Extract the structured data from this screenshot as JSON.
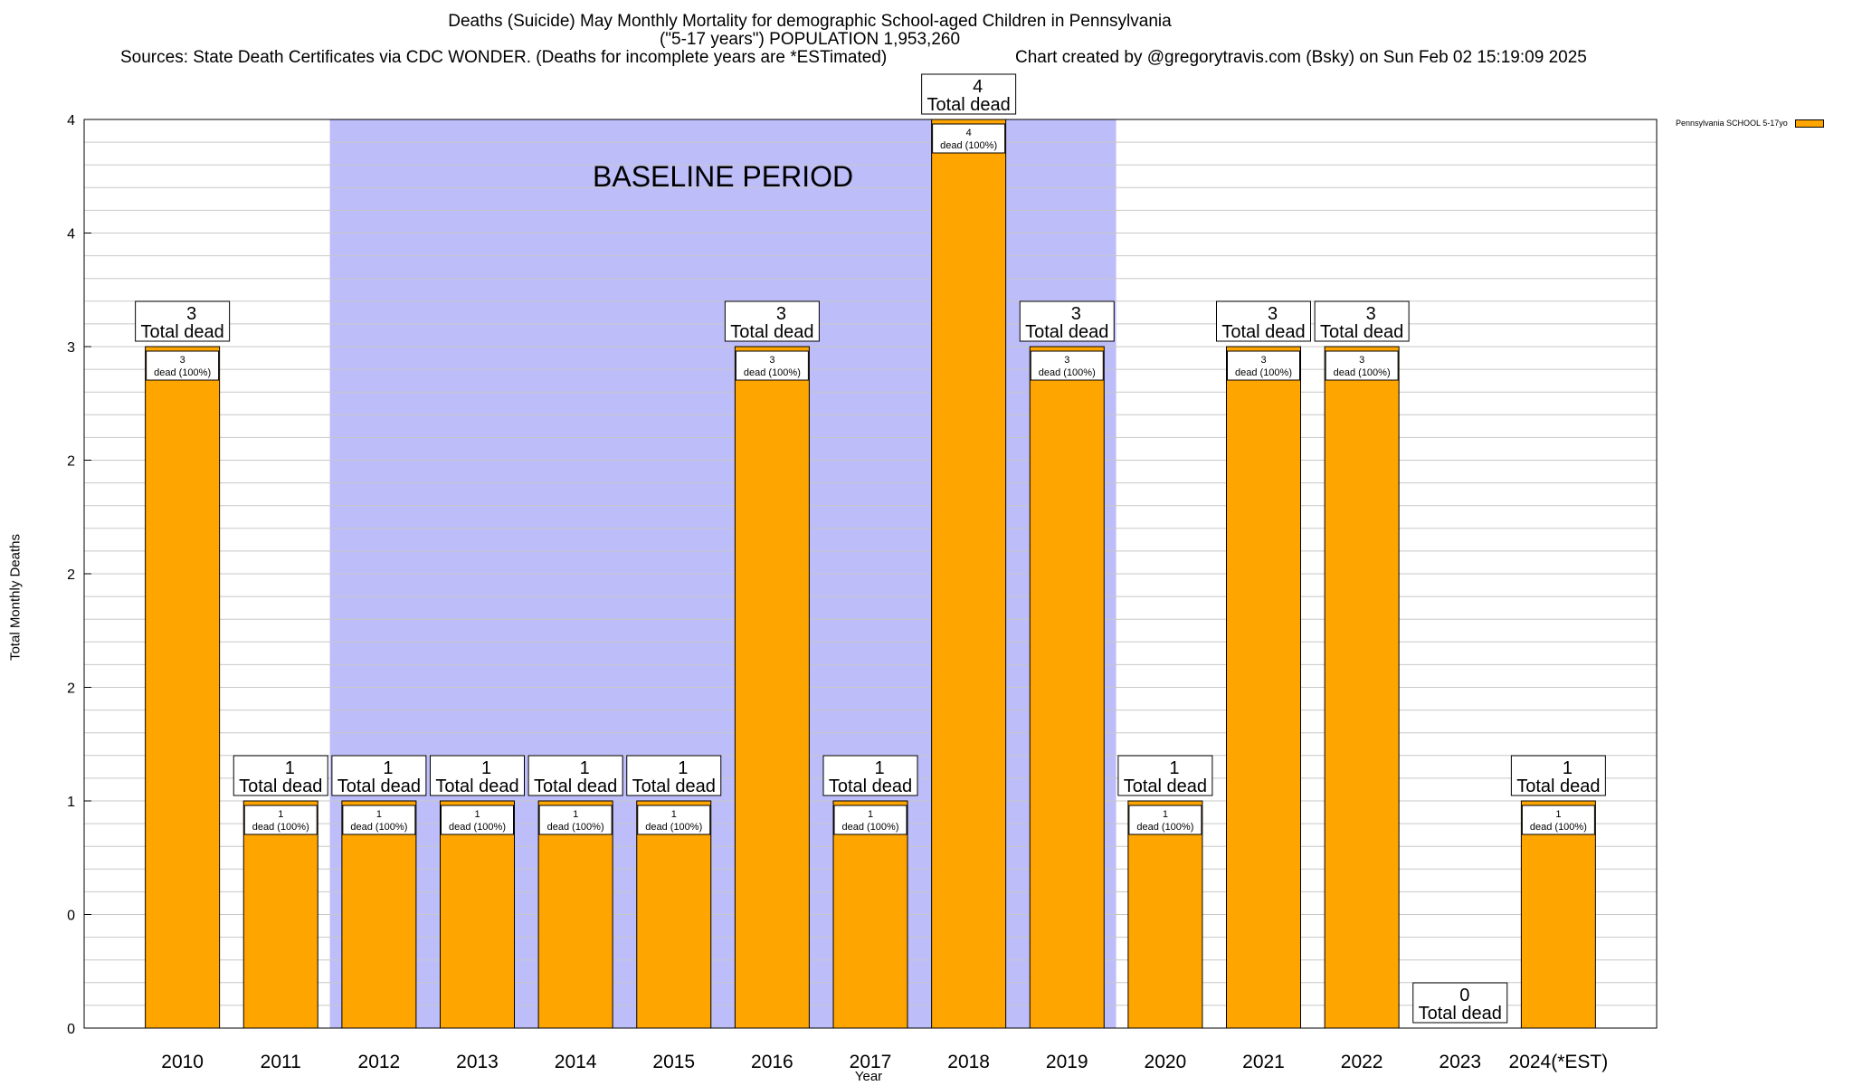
{
  "chart_data": {
    "type": "bar",
    "title_line1": "Deaths (Suicide) May Monthly Mortality for demographic School-aged Children in Pennsylvania",
    "title_line2": "(\"5-17 years\") POPULATION 1,953,260",
    "sources": "Sources: State Death Certificates via CDC WONDER. (Deaths for incomplete years are *ESTimated)",
    "credit": "Chart created by @gregorytravis.com (Bsky) on Sun Feb 02 15:19:09 2025",
    "xlabel": "Year",
    "ylabel": "Total Monthly Deaths",
    "ylim": [
      0,
      4
    ],
    "y_ticks": [
      {
        "value": 0,
        "label": "0"
      },
      {
        "value": 0.5,
        "label": "0"
      },
      {
        "value": 1,
        "label": "1"
      },
      {
        "value": 1.5,
        "label": "2"
      },
      {
        "value": 2,
        "label": "2"
      },
      {
        "value": 2.5,
        "label": "2"
      },
      {
        "value": 3,
        "label": "3"
      },
      {
        "value": 3.5,
        "label": "4"
      },
      {
        "value": 4,
        "label": "4"
      }
    ],
    "categories": [
      "2010",
      "2011",
      "2012",
      "2013",
      "2014",
      "2015",
      "2016",
      "2017",
      "2018",
      "2019",
      "2020",
      "2021",
      "2022",
      "2023",
      "2024(*EST)"
    ],
    "series": [
      {
        "name": "Pennsylvania SCHOOL 5-17yo",
        "color": "#FFA500",
        "values": [
          3,
          1,
          1,
          1,
          1,
          1,
          3,
          1,
          4,
          3,
          1,
          3,
          3,
          0,
          1
        ]
      }
    ],
    "baseline": {
      "label": "BASELINE PERIOD",
      "start": "2012",
      "end": "2019",
      "color": "#BDBDFA"
    },
    "total_label": "Total dead",
    "inner_suffix": "dead (100%)",
    "legend_position": "top-right",
    "grid": true
  }
}
